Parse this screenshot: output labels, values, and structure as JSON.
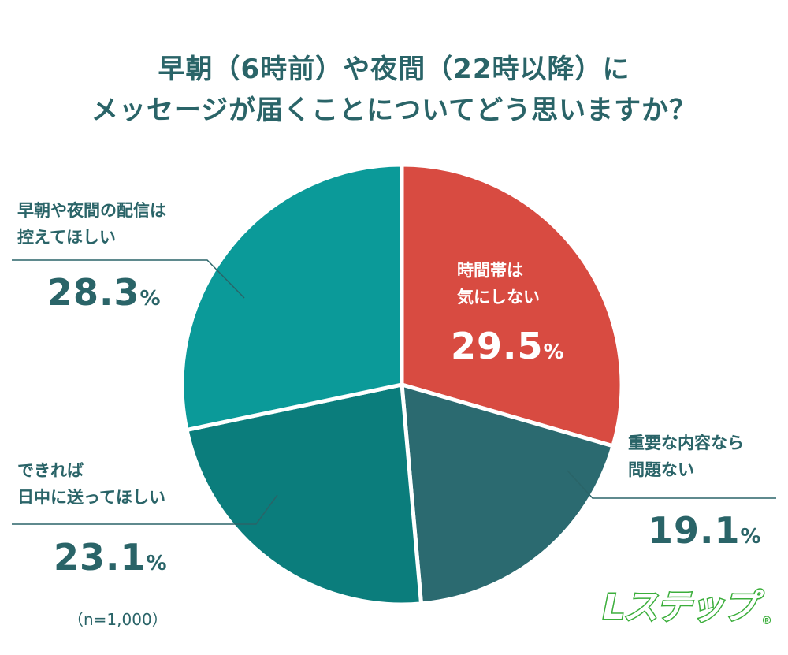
{
  "chart_data": {
    "type": "pie",
    "title_lines": [
      "早朝（6時前）や夜間（22時以降）に",
      "メッセージが届くことについてどう思いますか？"
    ],
    "start": "top",
    "direction": "clockwise",
    "unit": "%",
    "slices": [
      {
        "label_lines": [
          "時間帯は",
          "気にしない"
        ],
        "value": 29.5,
        "value_text": "29.5",
        "color": "#d84b41"
      },
      {
        "label_lines": [
          "重要な内容なら",
          "問題ない"
        ],
        "value": 19.1,
        "value_text": "19.1",
        "color": "#2b6a70"
      },
      {
        "label_lines": [
          "できれば",
          "日中に送ってほしい"
        ],
        "value": 23.1,
        "value_text": "23.1",
        "color": "#0b7d7c"
      },
      {
        "label_lines": [
          "早朝や夜間の配信は",
          "控えてほしい"
        ],
        "value": 28.3,
        "value_text": "28.3",
        "color": "#0b9a99"
      }
    ],
    "note": "（n=1,000）"
  },
  "logo": {
    "text": "Lステップ",
    "registered": "®",
    "color": "#3bae3b"
  }
}
